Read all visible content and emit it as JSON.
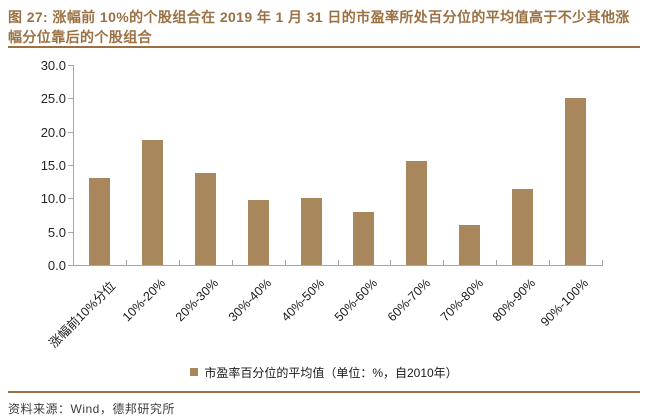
{
  "figure": {
    "title": "图 27: 涨幅前 10%的个股组合在 2019 年 1 月 31 日的市盈率所处百分位的平均值高于不少其他涨幅分位靠后的个股组合"
  },
  "chart_data": {
    "type": "bar",
    "categories": [
      "涨幅前10%分位",
      "10%-20%",
      "20%-30%",
      "30%-40%",
      "40%-50%",
      "50%-60%",
      "60%-70%",
      "70%-80%",
      "80%-90%",
      "90%-100%"
    ],
    "values": [
      13.1,
      18.7,
      13.8,
      9.7,
      10.1,
      8.0,
      15.6,
      6.0,
      11.4,
      25.0
    ],
    "legend": "市盈率百分位的平均值（单位：%，自2010年）",
    "ylim": [
      0,
      30
    ],
    "ytick_interval": 5,
    "ytick_labels": [
      "0.0",
      "5.0",
      "10.0",
      "15.0",
      "20.0",
      "25.0",
      "30.0"
    ],
    "grid": false,
    "legend_position": "bottom-center",
    "xlabel": "",
    "ylabel": "",
    "bar_color": "#a9875c",
    "axis_color": "#a6a6a6"
  },
  "footer": {
    "source": "资料来源：Wind，德邦研究所"
  },
  "colors": {
    "title_brown": "#9b7143",
    "rule_brown": "#9b7143",
    "bar": "#a9875c",
    "axis_gray": "#a6a6a6",
    "text_dark": "#1a1a1a"
  }
}
